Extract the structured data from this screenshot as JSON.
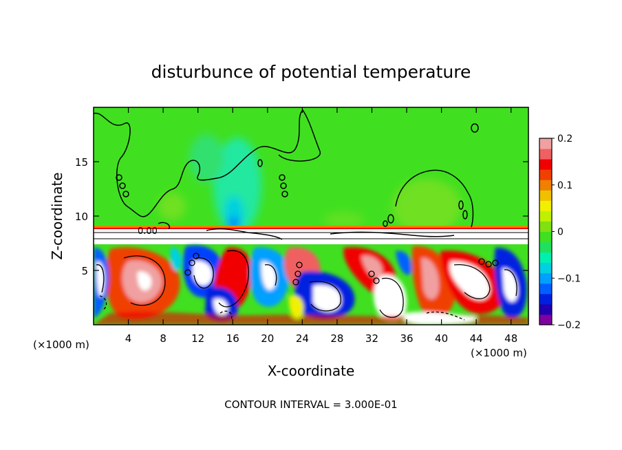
{
  "chart_data": {
    "type": "heatmap",
    "title": "disturbunce of potential temperature",
    "xlabel": "X-coordinate",
    "ylabel": "Z-coordinate",
    "x_unit_left": "(×1000 m)",
    "x_unit_right": "(×1000 m)",
    "footer": "CONTOUR INTERVAL = 3.000E-01",
    "contour_label": "0.00",
    "xlim": [
      0,
      50
    ],
    "ylim": [
      0,
      20
    ],
    "x_ticks": [
      "4",
      "8",
      "12",
      "16",
      "20",
      "24",
      "28",
      "32",
      "36",
      "40",
      "44",
      "48"
    ],
    "x_tick_values": [
      4,
      8,
      12,
      16,
      20,
      24,
      28,
      32,
      36,
      40,
      44,
      48
    ],
    "y_ticks": [
      "5",
      "10",
      "15"
    ],
    "y_tick_values": [
      5,
      10,
      15
    ],
    "colorbar": {
      "range": [
        -0.2,
        0.2
      ],
      "tick_labels": [
        "0.2",
        "0.1",
        "0",
        "−0.1",
        "−0.2"
      ],
      "tick_values": [
        0.2,
        0.1,
        0,
        -0.1,
        -0.2
      ],
      "colors": [
        "#8000a0",
        "#2000b0",
        "#0020e0",
        "#0060ff",
        "#00a0ff",
        "#00d0e0",
        "#00f0b0",
        "#20e060",
        "#40e020",
        "#80e010",
        "#c0f000",
        "#f0f000",
        "#f0c000",
        "#f08000",
        "#f04000",
        "#f00000",
        "#f06060",
        "#f0a0a0"
      ]
    },
    "regions": [
      {
        "z_range": [
          9,
          20
        ],
        "value": 0.02,
        "description_color": "#40e020"
      },
      {
        "z_range": [
          8,
          9
        ],
        "value": 0.0,
        "description_color": "#ffffff"
      },
      {
        "z_range": [
          0,
          8
        ],
        "value": "mixed",
        "description_color": "turbulent"
      }
    ],
    "grid": false,
    "legend": "colorbar-right"
  }
}
